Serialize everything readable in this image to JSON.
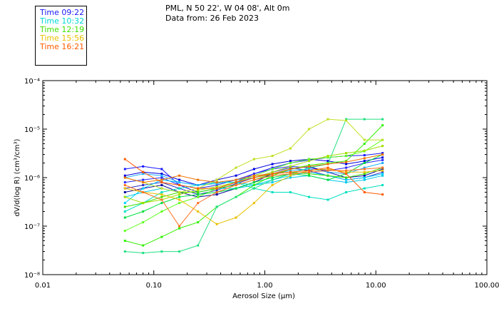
{
  "header": {
    "line1": "PML, N 50 22', W 04 08', Alt 0m",
    "line2": "Data from: 26 Feb 2023"
  },
  "legend": [
    {
      "label": "Time 09:22",
      "color": "#1a1aff"
    },
    {
      "label": "Time 10:32",
      "color": "#00d8d8"
    },
    {
      "label": "Time 12:19",
      "color": "#40e000"
    },
    {
      "label": "Time 15:56",
      "color": "#e8c000"
    },
    {
      "label": "Time 16:21",
      "color": "#ff5a00"
    }
  ],
  "chart_data": {
    "type": "line",
    "title": "PML, N 50 22', W 04 08', Alt 0m — Data from: 26 Feb 2023",
    "xlabel": "Aerosol Size (μm)",
    "ylabel": "dV/d(log R) (cm³/cm³)",
    "xscale": "log",
    "yscale": "log",
    "xlim": [
      0.01,
      100
    ],
    "ylim": [
      1e-08,
      0.0001
    ],
    "x_ticks": [
      0.01,
      0.1,
      1,
      10,
      100
    ],
    "x_tick_labels": [
      "0.01",
      "0.10",
      "1.00",
      "10.00",
      "100.00"
    ],
    "y_ticks": [
      1e-08,
      1e-07,
      1e-06,
      1e-05,
      0.0001
    ],
    "y_tick_labels": [
      "10⁻⁸",
      "10⁻⁷",
      "10⁻⁶",
      "10⁻⁵",
      "10⁻⁴"
    ],
    "x": [
      0.055,
      0.08,
      0.118,
      0.17,
      0.25,
      0.37,
      0.55,
      0.8,
      1.17,
      1.7,
      2.5,
      3.7,
      5.4,
      7.9,
      11.5
    ],
    "series": [
      {
        "name": "Time 09:22",
        "color": "#1a1aff",
        "values": [
          1.5e-06,
          1.7e-06,
          1.5e-06,
          7e-07,
          5e-07,
          6e-07,
          8e-07,
          1.2e-06,
          1.6e-06,
          2e-06,
          2.3e-06,
          2.6e-06,
          2.8e-06,
          2.9e-06,
          3.2e-06
        ]
      },
      {
        "name": "Time 09:22",
        "color": "#0000e0",
        "values": [
          1.1e-06,
          1.3e-06,
          1.2e-06,
          9e-07,
          7e-07,
          9e-07,
          1.1e-06,
          1.5e-06,
          1.9e-06,
          2.2e-06,
          2.4e-06,
          2.2e-06,
          1.9e-06,
          2.2e-06,
          2.6e-06
        ]
      },
      {
        "name": "Time 09:22",
        "color": "#2a2aff",
        "values": [
          8e-07,
          9e-07,
          1e-06,
          7e-07,
          6e-07,
          7e-07,
          9e-07,
          1.2e-06,
          1.5e-06,
          1.7e-06,
          1.6e-06,
          1.4e-06,
          1.6e-06,
          2e-06,
          2.3e-06
        ]
      },
      {
        "name": "Time 09:22",
        "color": "#3030c8",
        "values": [
          6e-07,
          7e-07,
          8e-07,
          6e-07,
          4.5e-07,
          5.5e-07,
          7.5e-07,
          1e-06,
          1.3e-06,
          1.6e-06,
          1.4e-06,
          1.1e-06,
          9e-07,
          1e-06,
          1.3e-06
        ]
      },
      {
        "name": "Time 09:22",
        "color": "#0a0aa0",
        "values": [
          5e-07,
          6e-07,
          7e-07,
          5e-07,
          4e-07,
          4.5e-07,
          6e-07,
          8e-07,
          1.2e-06,
          1.5e-06,
          1.7e-06,
          1.3e-06,
          1e-06,
          1.1e-06,
          1.5e-06
        ]
      },
      {
        "name": "Time 10:32",
        "color": "#00d0ff",
        "values": [
          3e-07,
          6e-07,
          9e-07,
          8e-07,
          7e-07,
          8e-07,
          8e-07,
          7e-07,
          9e-07,
          1.1e-06,
          1.3e-06,
          1.1e-06,
          9e-07,
          1e-06,
          1.2e-06
        ]
      },
      {
        "name": "Time 10:32",
        "color": "#00e0c0",
        "values": [
          2e-07,
          3e-07,
          5e-07,
          6e-07,
          7e-07,
          8e-07,
          8e-07,
          6e-07,
          5e-07,
          5e-07,
          4e-07,
          3.5e-07,
          5e-07,
          6e-07,
          7e-07
        ]
      },
      {
        "name": "Time 10:32",
        "color": "#00c8e8",
        "values": [
          4e-07,
          5e-07,
          6e-07,
          5e-07,
          5e-07,
          6e-07,
          6e-07,
          7e-07,
          8e-07,
          1e-06,
          1.1e-06,
          9e-07,
          8e-07,
          9e-07,
          1.1e-06
        ]
      },
      {
        "name": "Time 10:32",
        "color": "#20b0ff",
        "values": [
          1e-06,
          1.2e-06,
          1.1e-06,
          8e-07,
          7e-07,
          7.5e-07,
          9e-07,
          1e-06,
          1.2e-06,
          1.4e-06,
          1.5e-06,
          1.3e-06,
          1.2e-06,
          1.6e-06,
          2e-06
        ]
      },
      {
        "name": "Time 12:19",
        "color": "#30f000",
        "values": [
          5e-08,
          4e-08,
          6e-08,
          9e-08,
          1.2e-07,
          2.5e-07,
          4e-07,
          7e-07,
          1.1e-06,
          1.5e-06,
          1.8e-06,
          2e-06,
          2.2e-06,
          5e-06,
          1.2e-05
        ]
      },
      {
        "name": "Time 12:19",
        "color": "#20e080",
        "values": [
          3e-08,
          2.8e-08,
          3e-08,
          3e-08,
          4e-08,
          2.5e-07,
          4e-07,
          6e-07,
          9e-07,
          1.2e-06,
          1.6e-06,
          1.9e-06,
          1.6e-05,
          1.6e-05,
          1.6e-05
        ]
      },
      {
        "name": "Time 12:19",
        "color": "#60ff20",
        "values": [
          8e-08,
          1.2e-07,
          2e-07,
          3e-07,
          4e-07,
          6e-07,
          8e-07,
          1.1e-06,
          1.5e-06,
          2e-06,
          2.4e-06,
          2.6e-06,
          2.8e-06,
          3.5e-06,
          6e-06
        ]
      },
      {
        "name": "Time 12:19",
        "color": "#00e040",
        "values": [
          1.5e-07,
          2e-07,
          3e-07,
          4e-07,
          4.5e-07,
          5e-07,
          6e-07,
          8e-07,
          1e-06,
          1.2e-06,
          1.1e-06,
          9e-07,
          1.2e-06,
          2e-06,
          3e-06
        ]
      },
      {
        "name": "Time 12:19",
        "color": "#40e000",
        "values": [
          2.5e-07,
          3e-07,
          4e-07,
          5e-07,
          5e-07,
          6e-07,
          7e-07,
          9e-07,
          1.2e-06,
          1.3e-06,
          1.2e-06,
          1.1e-06,
          1e-06,
          1.2e-06,
          1.6e-06
        ]
      },
      {
        "name": "Time 15:56",
        "color": "#a0e000",
        "values": [
          4e-07,
          3e-07,
          3.5e-07,
          4.5e-07,
          5.5e-07,
          6.5e-07,
          8e-07,
          1e-06,
          1.3e-06,
          1.7e-06,
          2.2e-06,
          2.8e-06,
          3.2e-06,
          3.6e-06,
          4.5e-06
        ]
      },
      {
        "name": "Time 15:56",
        "color": "#e8c000",
        "values": [
          6e-07,
          5e-07,
          4.5e-07,
          3.5e-07,
          2e-07,
          1.1e-07,
          1.5e-07,
          3e-07,
          7e-07,
          1.1e-06,
          1.4e-06,
          1.5e-06,
          1.3e-06,
          1.3e-06,
          1.4e-06
        ]
      },
      {
        "name": "Time 15:56",
        "color": "#c0e020",
        "values": [
          1e-06,
          8e-07,
          6e-07,
          5e-07,
          6e-07,
          9e-07,
          1.6e-06,
          2.4e-06,
          2.8e-06,
          4e-06,
          1e-05,
          1.6e-05,
          1.5e-05,
          6e-06,
          6e-06
        ]
      },
      {
        "name": "Time 16:21",
        "color": "#ff5a00",
        "values": [
          2.4e-06,
          1.3e-06,
          8e-07,
          7e-07,
          6e-07,
          6e-07,
          8e-07,
          1e-06,
          1.2e-06,
          1.3e-06,
          1.4e-06,
          1.6e-06,
          1.2e-06,
          5e-07,
          4.5e-07
        ]
      },
      {
        "name": "Time 16:21",
        "color": "#f07000",
        "values": [
          1e-06,
          8e-07,
          9e-07,
          1.1e-06,
          9e-07,
          8e-07,
          9e-07,
          1.1e-06,
          1.2e-06,
          1.5e-06,
          1.7e-06,
          1.9e-06,
          2.1e-06,
          2.5e-06,
          3e-06
        ]
      },
      {
        "name": "Time 16:21",
        "color": "#ff7020",
        "values": [
          7e-07,
          5e-07,
          3.5e-07,
          1e-07,
          3e-07,
          5e-07,
          7e-07,
          9e-07,
          1.1e-06,
          1.2e-06,
          1.3e-06,
          1.4e-06,
          1.4e-06,
          1.5e-06,
          1.6e-06
        ]
      }
    ]
  }
}
